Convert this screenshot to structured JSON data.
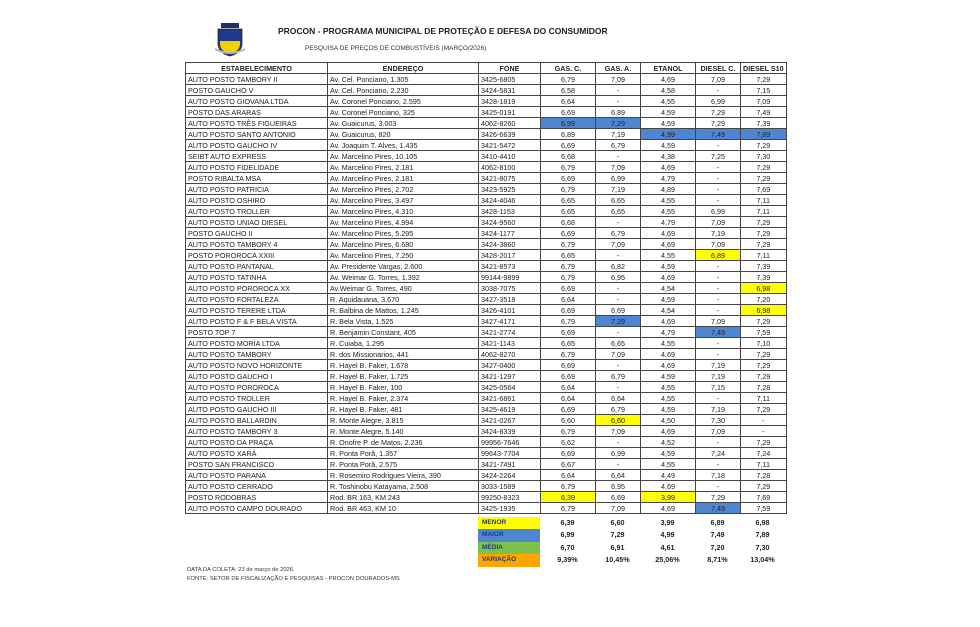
{
  "header": {
    "title": "PROCON - PROGRAMA MUNICIPAL DE PROTEÇÃO E DEFESA DO CONSUMIDOR",
    "subtitle": "PESQUISA DE PREÇOS DE COMBUSTÍVEIS (MARÇO/2026)"
  },
  "colors": {
    "min": "#ffff00",
    "max": "#4f86d4",
    "media": "#7cc24a",
    "variacao": "#ffa500"
  },
  "columns": [
    "ESTABELECIMENTO",
    "ENDEREÇO",
    "FONE",
    "GAS. C.",
    "GAS. A.",
    "ETANOL",
    "DIESEL C.",
    "DIESEL S10"
  ],
  "rows": [
    {
      "cells": [
        "AUTO POSTO TAMBORY II",
        "Av. Cel. Ponciano, 1.305",
        "3425-6805",
        "6,79",
        "7,09",
        "4,69",
        "7,09",
        "7,29"
      ],
      "hl": {}
    },
    {
      "cells": [
        "POSTO GAUCHO V",
        "Av. Cel. Ponciano, 2.230",
        "3424-5831",
        "6,58",
        "-",
        "4,58",
        "-",
        "7,15"
      ],
      "hl": {}
    },
    {
      "cells": [
        "AUTO POSTO GIOVANA LTDA",
        "Av. Coronel Ponciano, 2.595",
        "3428-1819",
        "6,64",
        "-",
        "4,55",
        "6,99",
        "7,09"
      ],
      "hl": {}
    },
    {
      "cells": [
        "POSTO DAS ARARAS",
        "Av. Coronel Ponciano, 325",
        "3425-0191",
        "6,69",
        "6,89",
        "4,59",
        "7,29",
        "7,49"
      ],
      "hl": {}
    },
    {
      "cells": [
        "AUTO POSTO TRÊS FIGUEIRAS",
        "Av. Guaicurus, 3.003",
        "4062-8260",
        "6,99",
        "7,29",
        "4,59",
        "7,29",
        "7,39"
      ],
      "hl": {
        "3": "max",
        "4": "max"
      }
    },
    {
      "cells": [
        "AUTO POSTO SANTO ANTONIO",
        "Av. Guaicurus, 820",
        "3426-6639",
        "6,89",
        "7,19",
        "4,99",
        "7,49",
        "7,89"
      ],
      "hl": {
        "5": "max",
        "6": "max",
        "7": "max"
      }
    },
    {
      "cells": [
        "AUTO POSTO GAUCHO IV",
        "Av. Joaquim T. Alves, 1.435",
        "3421-5472",
        "6,69",
        "6,79",
        "4,59",
        "-",
        "7,29"
      ],
      "hl": {}
    },
    {
      "cells": [
        "SEIBT AUTO EXPRESS",
        "Av. Marcelino Pires, 10.105",
        "3410-4410",
        "6,68",
        "-",
        "4,38",
        "7,25",
        "7,30"
      ],
      "hl": {}
    },
    {
      "cells": [
        "AUTO POSTO FIDELIDADE",
        "Av. Marcelino Pires, 2.181",
        "4062-8100",
        "6,79",
        "7,09",
        "4,69",
        "-",
        "7,29"
      ],
      "hl": {}
    },
    {
      "cells": [
        "POSTO RIBALTA MSA",
        "Av. Marcelino Pires, 2.181",
        "3421-8075",
        "6,69",
        "6,99",
        "4,79",
        "-",
        "7,29"
      ],
      "hl": {}
    },
    {
      "cells": [
        "AUTO POSTO PATRICIA",
        "Av. Marcelino Pires, 2.702",
        "3423-5925",
        "6,79",
        "7,19",
        "4,89",
        "-",
        "7,69"
      ],
      "hl": {}
    },
    {
      "cells": [
        "AUTO POSTO OSHIRO",
        "Av. Marcelino Pires, 3.497",
        "3424-4046",
        "6,65",
        "6,65",
        "4,55",
        "-",
        "7,11"
      ],
      "hl": {}
    },
    {
      "cells": [
        "AUTO POSTO TROLLER",
        "Av. Marcelino Pires, 4.310",
        "3428-1153",
        "6,65",
        "6,65",
        "4,55",
        "6,99",
        "7,11"
      ],
      "hl": {}
    },
    {
      "cells": [
        "AUTO POSTO UNIAO DIESEL",
        "Av. Marcelino Pires, 4.994",
        "3424-9560",
        "6,68",
        "-",
        "4,79",
        "7,09",
        "7,29"
      ],
      "hl": {}
    },
    {
      "cells": [
        "POSTO GAUCHO II",
        "Av. Marcelino Pires, 5.295",
        "3424-1177",
        "6,69",
        "6,79",
        "4,69",
        "7,19",
        "7,29"
      ],
      "hl": {}
    },
    {
      "cells": [
        "AUTO POSTO TAMBORY 4",
        "Av. Marcelino Pires, 6.680",
        "3424-3860",
        "6,79",
        "7,09",
        "4,69",
        "7,09",
        "7,29"
      ],
      "hl": {}
    },
    {
      "cells": [
        "POSTO POROROCA XXIII",
        "Av. Marcelino Pires, 7.250",
        "3428-2017",
        "6,65",
        "-",
        "4,55",
        "6,89",
        "7,11"
      ],
      "hl": {
        "6": "min"
      }
    },
    {
      "cells": [
        "AUTO POSTO PANTANAL",
        "Av. Presidente Vargas, 2.600",
        "3421-8573",
        "6,79",
        "6,82",
        "4,59",
        "-",
        "7,39"
      ],
      "hl": {}
    },
    {
      "cells": [
        "AUTO POSTO TATINHA",
        "Av. Weimar G. Torres, 1.392",
        "99144-9899",
        "6,79",
        "6,95",
        "4,69",
        "-",
        "7,39"
      ],
      "hl": {}
    },
    {
      "cells": [
        "AUTO POSTO POROROCA XX",
        "Av.Weimar G. Torres, 490",
        "3038-7075",
        "6,69",
        "-",
        "4,54",
        "-",
        "6,98"
      ],
      "hl": {
        "7": "min"
      }
    },
    {
      "cells": [
        "AUTO POSTO FORTALEZA",
        "R. Aquidauana, 3.670",
        "3427-3518",
        "6,64",
        "-",
        "4,59",
        "-",
        "7,20"
      ],
      "hl": {}
    },
    {
      "cells": [
        "AUTO POSTO TERERE LTDA",
        "R. Balbina de Mattos, 1.245",
        "3426-4101",
        "6,69",
        "6,69",
        "4,54",
        "-",
        "6,98"
      ],
      "hl": {
        "7": "min"
      }
    },
    {
      "cells": [
        "AUTO POSTO F & F BELA VISTA",
        "R. Bela Vista, 1.525",
        "3427-4171",
        "6,79",
        "7,29",
        "4,69",
        "7,09",
        "7,29"
      ],
      "hl": {
        "4": "max"
      }
    },
    {
      "cells": [
        "POSTO TOP 7",
        "R. Benjamin Constant, 405",
        "3421-2774",
        "6,69",
        "-",
        "4,79",
        "7,49",
        "7,59"
      ],
      "hl": {
        "6": "max"
      }
    },
    {
      "cells": [
        "AUTO POSTO MORIA LTDA",
        "R. Cuiaba, 1.295",
        "3421-1143",
        "6,65",
        "6,65",
        "4,55",
        "-",
        "7,10"
      ],
      "hl": {}
    },
    {
      "cells": [
        "AUTO POSTO TAMBORY",
        "R. dos Missionarios, 441",
        "4062-8270",
        "6,79",
        "7,09",
        "4,69",
        "-",
        "7,29"
      ],
      "hl": {}
    },
    {
      "cells": [
        "AUTO POSTO NOVO HORIZONTE",
        "R. Hayel B. Faker, 1.678",
        "3427-0400",
        "6,69",
        "-",
        "4,69",
        "7,19",
        "7,29"
      ],
      "hl": {}
    },
    {
      "cells": [
        "AUTO POSTO GAUCHO I",
        "R. Hayel B. Faker, 1.725",
        "3421-1297",
        "6,69",
        "6,79",
        "4,59",
        "7,19",
        "7,29"
      ],
      "hl": {}
    },
    {
      "cells": [
        "AUTO POSTO POROROCA",
        "R. Hayel B. Faker, 100",
        "3425-0564",
        "6,64",
        "-",
        "4,55",
        "7,15",
        "7,28"
      ],
      "hl": {}
    },
    {
      "cells": [
        "AUTO POSTO TROLLER",
        "R. Hayel B. Faker, 2.374",
        "3421-6861",
        "6,64",
        "6,64",
        "4,55",
        "-",
        "7,11"
      ],
      "hl": {}
    },
    {
      "cells": [
        "AUTO POSTO GAUCHO III",
        "R. Hayel B. Faker, 481",
        "3425-4619",
        "6,69",
        "6,79",
        "4,59",
        "7,19",
        "7,29"
      ],
      "hl": {}
    },
    {
      "cells": [
        "AUTO POSTO BALLARDIN",
        "R. Monte Alegre, 3.815",
        "3421-0267",
        "6,60",
        "6,60",
        "4,50",
        "7,30",
        "-"
      ],
      "hl": {
        "4": "min"
      }
    },
    {
      "cells": [
        "AUTO POSTO TAMBORY 3",
        "R. Monte Alegre, 5.140",
        "3424-8339",
        "6,79",
        "7,09",
        "4,69",
        "7,09",
        "-"
      ],
      "hl": {}
    },
    {
      "cells": [
        "AUTO POSTO DA PRAÇA",
        "R. Onofre P. de Matos, 2.236",
        "99956-7646",
        "6,62",
        "-",
        "4,52",
        "-",
        "7,29"
      ],
      "hl": {}
    },
    {
      "cells": [
        "AUTO POSTO XARÁ",
        "R. Ponta Porã, 1.357",
        "99643-7704",
        "6,69",
        "6,99",
        "4,59",
        "7,24",
        "7,24"
      ],
      "hl": {}
    },
    {
      "cells": [
        "POSTO SAN FRANCISCO",
        "R. Ponta Porã, 2.575",
        "3421-7491",
        "6,67",
        "-",
        "4,55",
        "-",
        "7,11"
      ],
      "hl": {}
    },
    {
      "cells": [
        "AUTO POSTO PARANA",
        "R. Rosemiro Rodrigues Vieira, 390",
        "3424-2264",
        "6,64",
        "6,64",
        "4,49",
        "7,18",
        "7,28"
      ],
      "hl": {}
    },
    {
      "cells": [
        "AUTO POSTO CERRADO",
        "R. Toshinobu Katayama, 2.508",
        "3033-1589",
        "6,79",
        "6,95",
        "4,69",
        "-",
        "7,29"
      ],
      "hl": {}
    },
    {
      "cells": [
        "POSTO RODOBRAS",
        "Rod. BR 163, KM 243",
        "99250-8323",
        "6,39",
        "6,69",
        "3,99",
        "7,29",
        "7,69"
      ],
      "hl": {
        "3": "min",
        "5": "min"
      }
    },
    {
      "cells": [
        "AUTO POSTO CAMPO DOURADO",
        "Rod. BR 463,  KM 10",
        "3425-1935",
        "6,79",
        "7,09",
        "4,69",
        "7,49",
        "7,59"
      ],
      "hl": {
        "6": "max"
      }
    }
  ],
  "summary": [
    {
      "label": "MENOR",
      "color": "#ffff00",
      "values": [
        "6,39",
        "6,60",
        "3,99",
        "6,89",
        "6,98"
      ]
    },
    {
      "label": "MAIOR",
      "color": "#4f86d4",
      "values": [
        "6,99",
        "7,29",
        "4,99",
        "7,49",
        "7,89"
      ]
    },
    {
      "label": "MÉDIA",
      "color": "#7cc24a",
      "values": [
        "6,70",
        "6,91",
        "4,61",
        "7,20",
        "7,30"
      ]
    },
    {
      "label": "VARIAÇÃO",
      "color": "#ffa500",
      "values": [
        "9,39%",
        "10,45%",
        "25,06%",
        "8,71%",
        "13,04%"
      ]
    }
  ],
  "footer": {
    "date": "DATA DA COLETA: 23 de março de 2026.",
    "source": "FONTE: SETOR DE FISCALIZAÇÃO E PESQUISAS - PROCON DOURADOS-MS"
  }
}
